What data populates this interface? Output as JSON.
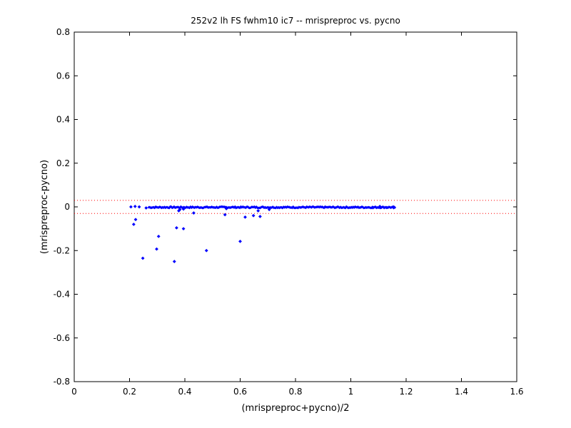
{
  "chart_data": {
    "type": "scatter",
    "title": "252v2 lh FS fwhm10 ic7 -- mrispreproc vs. pycno",
    "xlabel": "(mrispreproc+pycno)/2",
    "ylabel": "(mrispreproc-pycno)",
    "xlim": [
      0,
      1.6
    ],
    "ylim": [
      -0.8,
      0.8
    ],
    "xticks": [
      "0",
      "0.2",
      "0.4",
      "0.6",
      "0.8",
      "1",
      "1.2",
      "1.4",
      "1.6"
    ],
    "yticks": [
      "0.8",
      "0.6",
      "0.4",
      "0.2",
      "0",
      "-0.2",
      "-0.4",
      "-0.6",
      "-0.8"
    ],
    "grid": false,
    "marker_color": "#0000ff",
    "reference_line_color": "#ff0000",
    "reference_lines": [
      0.03,
      -0.03
    ],
    "dense_band": {
      "x_start": 0.27,
      "x_end": 1.16,
      "y_center": -0.002,
      "y_spread": 0.006
    },
    "points": [
      [
        0.205,
        0.0
      ],
      [
        0.22,
        0.002
      ],
      [
        0.235,
        0.0
      ],
      [
        0.26,
        -0.005
      ],
      [
        0.215,
        -0.08
      ],
      [
        0.222,
        -0.058
      ],
      [
        0.248,
        -0.235
      ],
      [
        0.305,
        -0.135
      ],
      [
        0.298,
        -0.193
      ],
      [
        0.362,
        -0.25
      ],
      [
        0.37,
        -0.096
      ],
      [
        0.378,
        -0.018
      ],
      [
        0.382,
        -0.012
      ],
      [
        0.395,
        -0.1
      ],
      [
        0.432,
        -0.028
      ],
      [
        0.478,
        -0.2
      ],
      [
        0.545,
        -0.036
      ],
      [
        0.6,
        -0.158
      ],
      [
        0.618,
        -0.047
      ],
      [
        0.648,
        -0.04
      ],
      [
        0.665,
        -0.018
      ],
      [
        0.672,
        -0.044
      ],
      [
        0.705,
        -0.012
      ],
      [
        0.395,
        -0.01
      ],
      [
        0.55,
        -0.008
      ],
      [
        1.08,
        -0.004
      ],
      [
        1.105,
        0.002
      ],
      [
        1.13,
        -0.003
      ],
      [
        1.155,
        -0.004
      ]
    ]
  }
}
